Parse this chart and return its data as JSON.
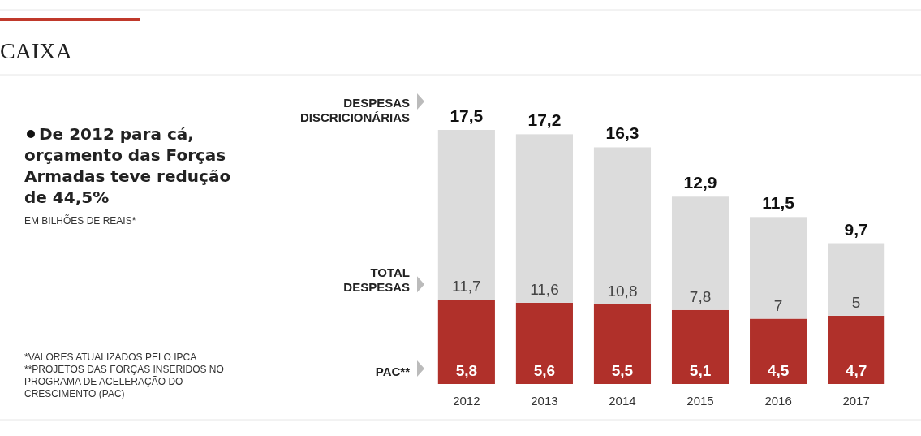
{
  "chart_data": {
    "type": "bar",
    "title": "CAIXA",
    "subtitle": "De 2012 para cá, orçamento das Forças Armadas teve redução de 44,5%",
    "stacked": true,
    "categories": [
      "2012",
      "2013",
      "2014",
      "2015",
      "2016",
      "2017"
    ],
    "series": [
      {
        "name": "PAC**",
        "color": "#b0302a",
        "values": [
          5.8,
          5.6,
          5.5,
          5.1,
          4.5,
          4.7
        ],
        "value_labels": [
          "5,8",
          "5,6",
          "5,5",
          "5,1",
          "4,5",
          "4,7"
        ]
      },
      {
        "name": "TOTAL DESPESAS",
        "color": "#dcdcdc",
        "values": [
          11.7,
          11.6,
          10.8,
          7.8,
          7,
          5
        ],
        "value_labels": [
          "11,7",
          "11,6",
          "10,8",
          "7,8",
          "7",
          "5"
        ]
      }
    ],
    "totals": [
      "17,5",
      "17,2",
      "16,3",
      "12,9",
      "11,5",
      "9,7"
    ],
    "annotations": [
      "DESPESAS DISCRICIONÁRIAS",
      "EM BILHÕES DE REAIS*",
      "*VALORES ATUALIZADOS PELO IPCA",
      "**PROJETOS DAS FORÇAS INSERIDOS NO PROGRAMA DE ACELERAÇÃO DO CRESCIMENTO (PAC)"
    ]
  }
}
